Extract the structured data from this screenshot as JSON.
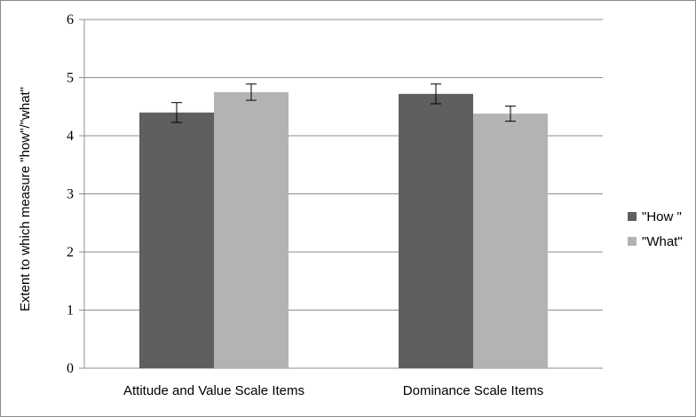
{
  "chart_data": {
    "type": "bar",
    "title": "",
    "xlabel": "",
    "ylabel": "Extent to which measure \"how\"/\"what\"",
    "ylim": [
      0,
      6
    ],
    "yticks": [
      "0",
      "1",
      "2",
      "3",
      "4",
      "5",
      "6"
    ],
    "grid": true,
    "legend_position": "right",
    "categories": [
      "Attitude and Value Scale Items",
      "Dominance Scale Items"
    ],
    "series": [
      {
        "name": "\"How \"",
        "color": "#5f5f5f",
        "values": [
          4.4,
          4.72
        ],
        "error": [
          0.17,
          0.17
        ]
      },
      {
        "name": "\"What\"",
        "color": "#b3b3b3",
        "values": [
          4.75,
          4.38
        ],
        "error": [
          0.14,
          0.13
        ]
      }
    ]
  }
}
